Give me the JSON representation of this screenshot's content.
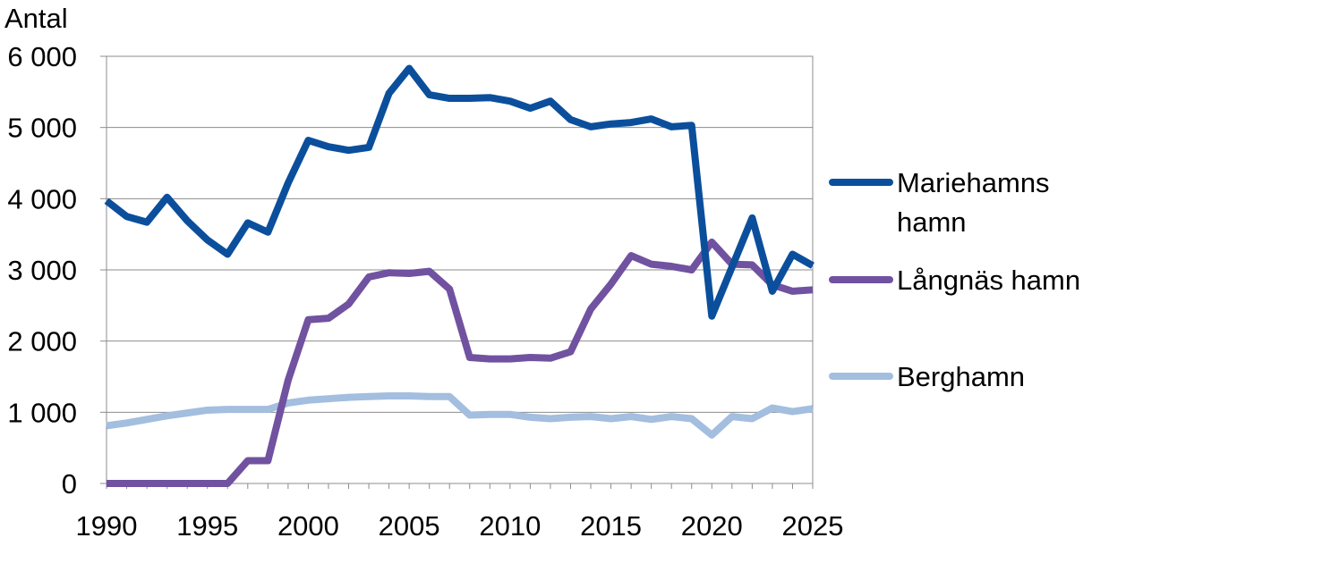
{
  "chart_data": {
    "type": "line",
    "title": "",
    "xlabel": "",
    "ylabel": "Antal",
    "xlim": [
      1990,
      2025
    ],
    "ylim": [
      0,
      6000
    ],
    "grid": true,
    "legend_position": "right",
    "x_ticks": [
      "1990",
      "1995",
      "2000",
      "2005",
      "2010",
      "2015",
      "2020",
      "2025"
    ],
    "y_ticks": [
      "0",
      "1 000",
      "2 000",
      "3 000",
      "4 000",
      "5 000",
      "6 000"
    ],
    "x": [
      1990,
      1991,
      1992,
      1993,
      1994,
      1995,
      1996,
      1997,
      1998,
      1999,
      2000,
      2001,
      2002,
      2003,
      2004,
      2005,
      2006,
      2007,
      2008,
      2009,
      2010,
      2011,
      2012,
      2013,
      2014,
      2015,
      2016,
      2017,
      2018,
      2019,
      2020,
      2021,
      2022,
      2023,
      2024,
      2025
    ],
    "series": [
      {
        "name": "Mariehamns hamn",
        "name_lines": [
          "Mariehamns",
          "hamn"
        ],
        "color": "#0b4f9c",
        "values": [
          3970,
          3750,
          3670,
          4020,
          3690,
          3420,
          3220,
          3660,
          3530,
          4220,
          4820,
          4730,
          4680,
          4720,
          5480,
          5830,
          5460,
          5410,
          5410,
          5420,
          5370,
          5270,
          5370,
          5110,
          5010,
          5050,
          5070,
          5120,
          5010,
          5030,
          2350,
          3040,
          3730,
          2700,
          3220,
          3060
        ]
      },
      {
        "name": "Långnäs hamn",
        "name_lines": [
          "Långnäs hamn"
        ],
        "color": "#7052a0",
        "values": [
          0,
          0,
          0,
          0,
          0,
          0,
          0,
          320,
          320,
          1450,
          2300,
          2320,
          2520,
          2900,
          2960,
          2950,
          2980,
          2730,
          1770,
          1750,
          1750,
          1770,
          1760,
          1850,
          2450,
          2800,
          3200,
          3080,
          3050,
          3000,
          3390,
          3080,
          3070,
          2790,
          2700,
          2720
        ]
      },
      {
        "name": "Berghamn",
        "name_lines": [
          "Berghamn"
        ],
        "color": "#a3bedf",
        "values": [
          810,
          850,
          900,
          950,
          990,
          1030,
          1040,
          1040,
          1040,
          1130,
          1170,
          1190,
          1210,
          1220,
          1230,
          1230,
          1220,
          1220,
          960,
          970,
          970,
          930,
          910,
          930,
          940,
          910,
          940,
          900,
          940,
          910,
          680,
          940,
          910,
          1060,
          1010,
          1050
        ]
      }
    ]
  }
}
